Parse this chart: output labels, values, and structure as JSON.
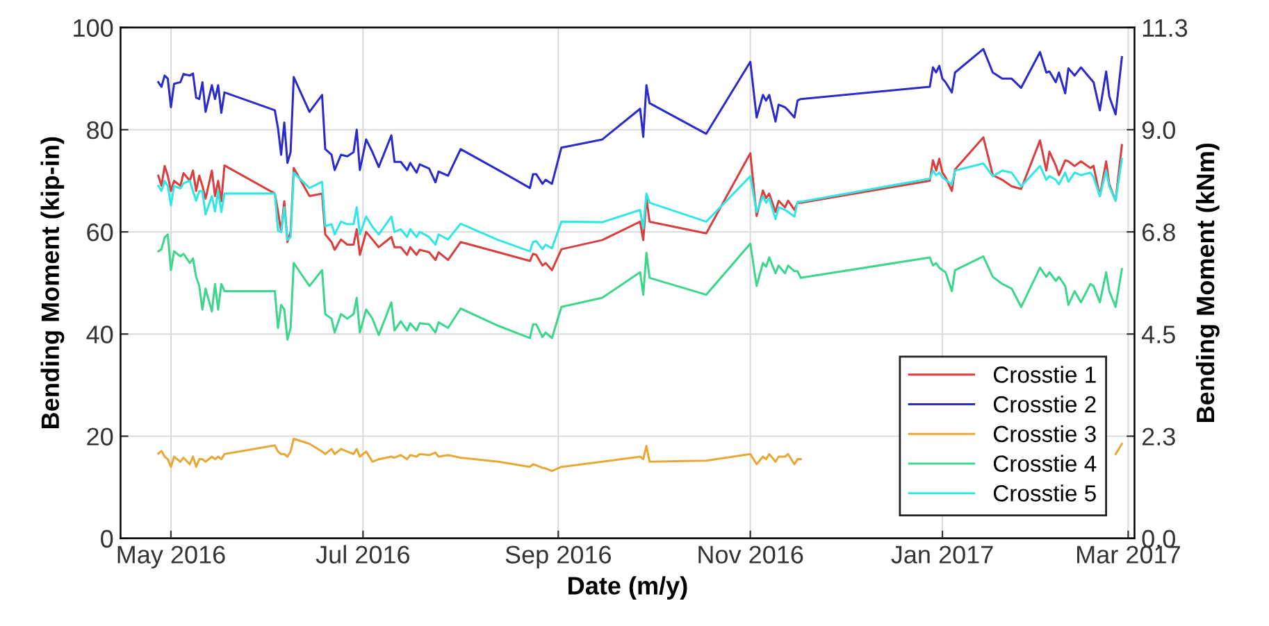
{
  "chart_data": {
    "type": "line",
    "xlabel": "Date (m/y)",
    "ylabel": "Bending Moment (kip-in)",
    "y2label": "Bending Moment (kNm)",
    "x": [
      "2016-04-27",
      "2016-04-28",
      "2016-04-29",
      "2016-04-30",
      "2016-05-01",
      "2016-05-02",
      "2016-05-04",
      "2016-05-05",
      "2016-05-07",
      "2016-05-08",
      "2016-05-09",
      "2016-05-10",
      "2016-05-11",
      "2016-05-12",
      "2016-05-14",
      "2016-05-15",
      "2016-05-16",
      "2016-05-17",
      "2016-05-18",
      "2016-06-03",
      "2016-06-04",
      "2016-06-05",
      "2016-06-06",
      "2016-06-07",
      "2016-06-08",
      "2016-06-09",
      "2016-06-14",
      "2016-06-18",
      "2016-06-19",
      "2016-06-21",
      "2016-06-22",
      "2016-06-24",
      "2016-06-26",
      "2016-06-28",
      "2016-06-29",
      "2016-06-30",
      "2016-07-02",
      "2016-07-04",
      "2016-07-06",
      "2016-07-10",
      "2016-07-11",
      "2016-07-13",
      "2016-07-15",
      "2016-07-16",
      "2016-07-18",
      "2016-07-19",
      "2016-07-22",
      "2016-07-24",
      "2016-07-25",
      "2016-07-28",
      "2016-08-01",
      "2016-08-13",
      "2016-08-23",
      "2016-08-24",
      "2016-08-25",
      "2016-08-27",
      "2016-08-28",
      "2016-08-30",
      "2016-09-02",
      "2016-09-15",
      "2016-09-27",
      "2016-09-28",
      "2016-09-29",
      "2016-09-30",
      "2016-10-18",
      "2016-11-01",
      "2016-11-03",
      "2016-11-05",
      "2016-11-06",
      "2016-11-07",
      "2016-11-09",
      "2016-11-10",
      "2016-11-12",
      "2016-11-13",
      "2016-11-15",
      "2016-11-16",
      "2016-11-17",
      "2016-12-28",
      "2016-12-29",
      "2016-12-30",
      "2016-12-31",
      "2017-01-01",
      "2017-01-02",
      "2017-01-04",
      "2017-01-05",
      "2017-01-14",
      "2017-01-17",
      "2017-01-20",
      "2017-01-23",
      "2017-01-26",
      "2017-02-01",
      "2017-02-03",
      "2017-02-04",
      "2017-02-06",
      "2017-02-07",
      "2017-02-09",
      "2017-02-10",
      "2017-02-12",
      "2017-02-14",
      "2017-02-17",
      "2017-02-18",
      "2017-02-20",
      "2017-02-22",
      "2017-02-23",
      "2017-02-25",
      "2017-02-27"
    ],
    "series": [
      {
        "name": "Crosstie 1",
        "color": "#d93f3f",
        "values": [
          71,
          69,
          72.9,
          71,
          68,
          70,
          69,
          71.5,
          70,
          72,
          68,
          71,
          69,
          66.5,
          72,
          67,
          70,
          66,
          73,
          67.5,
          64,
          60,
          66,
          58,
          60,
          72.5,
          67,
          67.5,
          59.5,
          58,
          56.5,
          58.5,
          57.5,
          57.5,
          60.5,
          55.5,
          60,
          58.5,
          57,
          59,
          57,
          57,
          55.5,
          57,
          55.5,
          56.5,
          56,
          54.5,
          56,
          54.5,
          58,
          56,
          54.3,
          55.7,
          55.5,
          53.4,
          53.9,
          52.5,
          56.6,
          58.4,
          62,
          58.4,
          66.6,
          62,
          59.7,
          75.4,
          63.1,
          68.1,
          66.6,
          67.5,
          63.9,
          66.1,
          64.8,
          66.1,
          64.3,
          65.7,
          65.7,
          70,
          74,
          72,
          74.3,
          71.6,
          70.7,
          68,
          72.2,
          78.5,
          71.1,
          70.2,
          68.9,
          68.4,
          77.9,
          72,
          75.7,
          73,
          71.1,
          74,
          73.8,
          72.9,
          73.8,
          72.5,
          72.9,
          67,
          73.8,
          69.3,
          66.1,
          77
        ]
      },
      {
        "name": "Crosstie 2",
        "color": "#2b2bcc",
        "values": [
          89.3,
          88.4,
          90.6,
          90,
          84.4,
          89,
          89.3,
          90.9,
          90.6,
          91,
          86.3,
          86,
          89.3,
          83.5,
          88.7,
          86,
          88.7,
          83.3,
          87.3,
          83.8,
          80.3,
          75.1,
          81.4,
          73.5,
          75.6,
          90.3,
          83.5,
          86.8,
          76.2,
          75.1,
          72.1,
          75.1,
          74.8,
          75.6,
          80,
          72.1,
          78.1,
          75.6,
          72.7,
          78.9,
          73.7,
          73.7,
          72.1,
          73.5,
          71.6,
          73.2,
          72.4,
          69.7,
          71.8,
          71,
          76.2,
          72.1,
          68.6,
          71.3,
          71.3,
          69.4,
          70.2,
          69.4,
          76.5,
          78.1,
          84.1,
          78.6,
          88.7,
          85.2,
          79.2,
          93.3,
          82.4,
          86.8,
          85.7,
          86.8,
          81.6,
          84.9,
          84.4,
          83.8,
          82.4,
          85.7,
          86,
          88.4,
          92.2,
          91.2,
          92.5,
          90,
          89.3,
          87.3,
          91.2,
          95.8,
          91.2,
          90,
          90,
          88.2,
          95.2,
          91.2,
          91.4,
          89.3,
          91.2,
          87.1,
          92,
          90.6,
          92.2,
          90,
          89.3,
          83.8,
          91.4,
          86.5,
          83,
          94.2
        ]
      },
      {
        "name": "Crosstie 3",
        "color": "#e8a838",
        "values": [
          16.6,
          17.1,
          16,
          15.5,
          14,
          16,
          15,
          15.8,
          14.5,
          16,
          14,
          15.5,
          15.5,
          15,
          16,
          15.5,
          16,
          15.5,
          16.5,
          18.2,
          17,
          16.5,
          16.5,
          16,
          17,
          19.5,
          18.5,
          17,
          16.5,
          17.5,
          16.5,
          17.5,
          17,
          16.5,
          17.5,
          16,
          17,
          15,
          15.5,
          16,
          15.8,
          16.3,
          15.5,
          16.3,
          16,
          16.5,
          16.3,
          16.8,
          16,
          16.3,
          15.8,
          15,
          14,
          14.5,
          14.3,
          13.8,
          13.7,
          13.2,
          14,
          15,
          16,
          15.5,
          18.1,
          15,
          15.2,
          16.5,
          14.5,
          16,
          15.5,
          16.5,
          15,
          16,
          16,
          16.5,
          14.5,
          15.5,
          15.5,
          null,
          null,
          null,
          null,
          null,
          null,
          null,
          null,
          null,
          null,
          null,
          null,
          null,
          null,
          null,
          null,
          null,
          null,
          null,
          null,
          null,
          null,
          null,
          null,
          null,
          null,
          null,
          16.5,
          18.5
        ]
      },
      {
        "name": "Crosstie 4",
        "color": "#3dd68c",
        "values": [
          56.2,
          56.6,
          58.9,
          59.5,
          52.5,
          56.2,
          55.2,
          55.7,
          53.9,
          54.8,
          51.2,
          49.4,
          44.8,
          48.9,
          44.4,
          49.8,
          44.8,
          49.8,
          48.4,
          48.4,
          41.2,
          45.7,
          44.8,
          38.9,
          41.2,
          53.9,
          49.4,
          52.5,
          43.9,
          43,
          40.3,
          43.9,
          43,
          43.9,
          47.1,
          40.3,
          44.8,
          43,
          39.8,
          46.2,
          40.7,
          42.5,
          40.7,
          42.1,
          40.7,
          42.1,
          41.9,
          40.3,
          42.3,
          41.2,
          45,
          41.6,
          39.2,
          41.9,
          41.9,
          39.4,
          40.3,
          39.2,
          45.3,
          47.1,
          52.1,
          47.7,
          55.9,
          51,
          47.7,
          57.7,
          49.4,
          53.9,
          53.2,
          55,
          51.9,
          53.4,
          51.9,
          53.4,
          52.3,
          52.3,
          51,
          55,
          53.4,
          53.9,
          53,
          52.5,
          52.1,
          48.4,
          52.5,
          55.2,
          51.2,
          49.8,
          48.9,
          45.3,
          53,
          51.2,
          52.1,
          50.4,
          51.2,
          49.4,
          45.7,
          48.4,
          46.2,
          49.8,
          49.4,
          46.2,
          52.1,
          48.4,
          45.3,
          52.7
        ]
      },
      {
        "name": "Crosstie 5",
        "color": "#33e6e6",
        "values": [
          69,
          68,
          70,
          69,
          65.2,
          69,
          68.5,
          69.5,
          70,
          68,
          66.1,
          68,
          68,
          63.4,
          67,
          64,
          68,
          63.9,
          67.5,
          67.5,
          60.2,
          60,
          64.8,
          58.4,
          59,
          71.6,
          68.6,
          69.8,
          61.1,
          61.5,
          59.5,
          62,
          61.5,
          61.5,
          64.8,
          59.5,
          63,
          61,
          59.5,
          63,
          60,
          60.5,
          59,
          60.5,
          59,
          60,
          59,
          57.5,
          59.5,
          58.5,
          61.6,
          58.4,
          56.2,
          58,
          58.2,
          56.6,
          57.5,
          56.8,
          62,
          61.9,
          64.3,
          60.7,
          67.5,
          65.7,
          62,
          70.9,
          63.9,
          67,
          65.7,
          66.6,
          62.5,
          64.8,
          64.3,
          63.9,
          63,
          65.9,
          65.9,
          70.4,
          72,
          71.1,
          71.6,
          70.7,
          70.2,
          69.3,
          72,
          73.4,
          70.9,
          72,
          71.6,
          68.9,
          72.9,
          70.2,
          70.9,
          70.2,
          69.3,
          71.6,
          69.8,
          71.6,
          71.1,
          71.6,
          70.7,
          67,
          72,
          68.9,
          66.1,
          74.3
        ]
      }
    ],
    "xlim": [
      "2016-04-15",
      "2017-03-03"
    ],
    "xticks": [
      {
        "value": "2016-05-01",
        "label": "May 2016"
      },
      {
        "value": "2016-07-01",
        "label": "Jul 2016"
      },
      {
        "value": "2016-09-01",
        "label": "Sep 2016"
      },
      {
        "value": "2016-11-01",
        "label": "Nov 2016"
      },
      {
        "value": "2017-01-01",
        "label": "Jan 2017"
      },
      {
        "value": "2017-03-01",
        "label": "Mar 2017"
      }
    ],
    "ylim": [
      0,
      100
    ],
    "yticks": [
      0,
      20,
      40,
      60,
      80,
      100
    ],
    "y2lim": [
      0,
      11.3
    ],
    "y2ticks": [
      {
        "value": 0,
        "label": "0.0"
      },
      {
        "value": 2.26,
        "label": "2.3"
      },
      {
        "value": 4.52,
        "label": "4.5"
      },
      {
        "value": 6.78,
        "label": "6.8"
      },
      {
        "value": 9.04,
        "label": "9.0"
      },
      {
        "value": 11.3,
        "label": "11.3"
      }
    ],
    "grid": true,
    "legend": "bottom right",
    "line_style": "solid",
    "marker": "none"
  }
}
